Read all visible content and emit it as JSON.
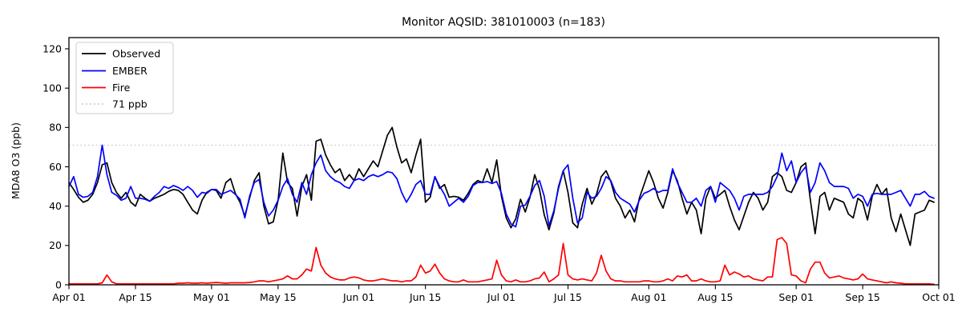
{
  "title": "Monitor AQSID: 381010003 (n=183)",
  "axes": {
    "ylabel": "MDA8 O3 (ppb)",
    "y_ticks": [
      "0",
      "20",
      "40",
      "60",
      "80",
      "100",
      "120"
    ],
    "y_tick_values": [
      0,
      20,
      40,
      60,
      80,
      100,
      120
    ],
    "x_ticks": [
      {
        "label": "Apr 01",
        "day": 0
      },
      {
        "label": "Apr 15",
        "day": 14
      },
      {
        "label": "May 01",
        "day": 30
      },
      {
        "label": "May 15",
        "day": 44
      },
      {
        "label": "Jun 01",
        "day": 61
      },
      {
        "label": "Jun 15",
        "day": 75
      },
      {
        "label": "Jul 01",
        "day": 91
      },
      {
        "label": "Jul 15",
        "day": 105
      },
      {
        "label": "Aug 01",
        "day": 122
      },
      {
        "label": "Aug 15",
        "day": 136
      },
      {
        "label": "Sep 01",
        "day": 153
      },
      {
        "label": "Sep 15",
        "day": 167
      },
      {
        "label": "Oct 01",
        "day": 183
      }
    ],
    "xlim_days": [
      0,
      183
    ],
    "ylim": [
      0,
      125.7
    ],
    "grid": false
  },
  "legend": [
    {
      "label": "Observed",
      "color": "#000000",
      "style": "solid"
    },
    {
      "label": "EMBER",
      "color": "#0000ff",
      "style": "solid"
    },
    {
      "label": "Fire",
      "color": "#ff0000",
      "style": "solid"
    },
    {
      "label": "71 ppb",
      "color": "#d3d3d3",
      "style": "dotted"
    }
  ],
  "threshold": {
    "value": 71,
    "label": "71 ppb",
    "color": "#d3d3d3"
  },
  "chart_data": {
    "type": "line",
    "x_unit": "day",
    "x_range_labels": [
      "Apr 01",
      "Oct 01"
    ],
    "n_points": 183,
    "legend_position": "upper left",
    "series": [
      {
        "name": "Observed",
        "color": "#000000",
        "values": [
          52,
          48.5,
          44.5,
          42,
          43,
          46,
          52,
          61,
          62,
          52,
          47,
          44,
          47,
          42,
          40,
          46,
          44,
          42.5,
          44,
          45,
          46,
          47.5,
          48.5,
          48,
          46,
          42,
          38,
          36,
          43,
          47,
          48.5,
          48,
          44,
          52,
          54,
          46.5,
          42,
          35,
          44,
          53,
          57,
          40,
          31,
          32,
          43,
          67,
          52,
          49,
          35,
          50,
          56,
          43,
          73,
          74,
          66,
          61,
          57,
          59,
          53,
          56,
          53,
          59,
          55,
          59,
          63,
          60,
          68,
          76,
          80,
          70,
          62,
          64,
          57,
          66,
          74,
          42,
          44.5,
          55,
          49,
          51,
          44.5,
          45,
          44.5,
          43,
          46.5,
          51,
          53,
          52,
          59,
          52,
          63.5,
          45,
          34,
          29,
          33.5,
          43.5,
          37,
          44.5,
          56,
          48.5,
          35.5,
          28,
          36.5,
          50,
          58,
          47,
          31.5,
          29,
          41,
          49,
          41,
          46,
          55,
          58,
          52.5,
          44,
          40,
          34,
          38,
          32,
          44,
          51,
          58,
          52,
          44,
          39,
          47,
          58,
          53,
          44,
          36,
          42,
          38,
          26,
          44,
          50,
          44,
          46,
          48,
          40,
          33,
          28,
          35,
          42,
          47,
          44,
          38,
          42,
          55,
          57,
          55,
          48,
          47,
          52,
          60,
          62,
          43,
          26,
          45,
          47,
          38,
          44,
          43,
          42,
          36,
          34,
          44,
          42,
          33,
          45,
          51,
          46,
          49,
          34,
          27,
          36,
          28,
          20,
          36,
          37,
          38,
          43,
          42
        ]
      },
      {
        "name": "EMBER",
        "color": "#0000ff",
        "values": [
          50,
          55,
          46,
          44.5,
          45,
          47,
          55,
          71,
          56,
          47,
          45.5,
          43,
          44,
          50,
          44,
          44,
          43.5,
          42.5,
          45,
          47,
          50,
          49,
          50.5,
          49.5,
          48,
          50,
          48,
          44.5,
          47,
          46.5,
          48.5,
          48.5,
          46,
          47,
          48,
          46,
          43.5,
          34,
          45,
          52,
          53.5,
          42,
          35,
          38,
          43,
          50,
          54,
          46,
          42,
          52,
          46,
          56,
          62,
          66,
          58,
          55,
          53,
          52,
          50,
          49,
          53,
          54,
          53,
          55,
          56,
          55,
          56,
          57.5,
          57,
          54,
          47,
          42,
          46,
          51,
          53,
          46,
          46,
          55,
          50,
          46,
          40,
          42,
          44,
          42,
          45,
          50.5,
          52,
          52,
          52.5,
          51.5,
          52.5,
          46.5,
          36,
          31,
          29.5,
          40,
          40.5,
          45,
          50.5,
          53,
          45,
          30,
          37.5,
          49,
          58,
          61,
          44,
          31.5,
          34,
          47,
          44,
          45,
          49,
          55,
          53,
          47,
          44,
          42.5,
          41,
          37,
          43,
          46.5,
          47.5,
          49,
          47,
          48,
          48,
          59,
          52,
          47,
          42,
          42,
          44,
          40,
          48,
          50,
          42,
          52,
          50,
          48,
          44,
          38,
          45,
          46,
          46,
          46,
          46,
          47,
          50,
          55,
          67,
          58,
          63,
          52,
          57,
          60,
          47,
          52,
          62,
          58,
          52,
          50,
          50,
          50,
          49,
          44,
          46,
          45,
          40,
          46,
          46.5,
          46,
          46,
          46,
          47,
          48,
          44,
          40,
          46,
          46,
          47.5,
          45,
          44
        ]
      },
      {
        "name": "Fire",
        "color": "#ff0000",
        "values": [
          0.5,
          0.5,
          0.5,
          0.5,
          0.5,
          0.5,
          0.5,
          1,
          5,
          1.5,
          0.5,
          0.5,
          0.5,
          0.5,
          0.5,
          0.5,
          0.5,
          0.5,
          0.5,
          0.5,
          0.5,
          0.5,
          0.5,
          0.8,
          0.8,
          1,
          0.8,
          0.8,
          1,
          0.8,
          1,
          1.2,
          1,
          0.8,
          1,
          1,
          1,
          1,
          1.2,
          1.5,
          2,
          2,
          1.5,
          2,
          2.5,
          3,
          4.5,
          3,
          3,
          5,
          8,
          7,
          19,
          10,
          6,
          4,
          3,
          2.5,
          2.5,
          3.5,
          4,
          3.5,
          2.5,
          2,
          2,
          2.5,
          3,
          2.5,
          2,
          2,
          1.5,
          2,
          2,
          4,
          10,
          6,
          7,
          10.5,
          6,
          3,
          2,
          1.5,
          1.5,
          2.5,
          1.5,
          1.5,
          1.5,
          2,
          2.5,
          3,
          12.5,
          5,
          2,
          1.5,
          2.5,
          1.5,
          1.5,
          2,
          3,
          3.5,
          6.5,
          1.5,
          3,
          5,
          21,
          5,
          3,
          2.5,
          3,
          2.5,
          2,
          6,
          15,
          7,
          3,
          2,
          2,
          1.5,
          1.5,
          1.5,
          1.5,
          2,
          2,
          1.5,
          1.5,
          2,
          3,
          2,
          4.5,
          4,
          5,
          2,
          2,
          3,
          2,
          1.5,
          1.5,
          2,
          10,
          5,
          6.5,
          5.5,
          4,
          4.5,
          3,
          2.5,
          2,
          4,
          4,
          23,
          24,
          21,
          5,
          4.5,
          2,
          1,
          8,
          11.5,
          11.5,
          6,
          3.5,
          4,
          4.5,
          3.5,
          3,
          2.5,
          3,
          5.5,
          3,
          2.5,
          2,
          1.5,
          1,
          1.5,
          1,
          0.8,
          0.5,
          0.5,
          0.5,
          0.5,
          0.5,
          0.5,
          0.3
        ]
      }
    ],
    "threshold_line": {
      "value": 71,
      "label": "71 ppb",
      "style": "dotted",
      "color": "#d3d3d3"
    }
  }
}
